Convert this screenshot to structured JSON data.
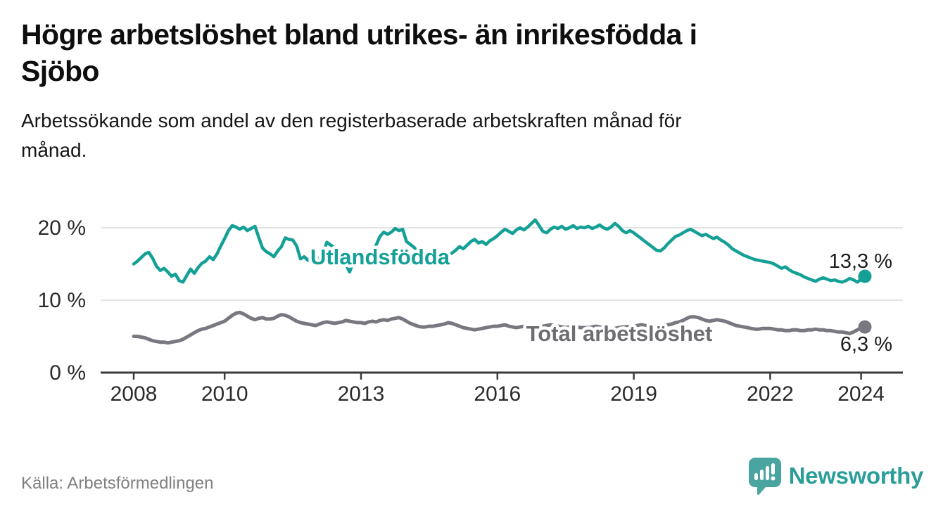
{
  "header": {
    "title_lines": [
      "Högre arbetslöshet bland utrikes- än inrikesfödda i",
      "Sjöbo"
    ],
    "subtitle_lines": [
      "Arbetssökande som andel av den registerbaserade arbetskraften månad för",
      "månad."
    ]
  },
  "footer": {
    "source": "Källa: Arbetsförmedlingen",
    "brand": "Newsworthy"
  },
  "colors": {
    "teal_line": "#14a096",
    "gray_line": "#787880",
    "gray_label": "#6d6d72",
    "grid": "#e3e3e3",
    "axis": "#3b3b3b",
    "tick_text": "#2b2b2b",
    "end_label_text": "#1c1c1c",
    "logo_teal": "#4aa5a1"
  },
  "chart_data": {
    "type": "line",
    "x_start_year": 2008,
    "x_step_months": 1,
    "xlim": [
      2007.25,
      2024.9
    ],
    "ylim": [
      0,
      21.5
    ],
    "grid": "horizontal-only",
    "x_ticks": [
      {
        "value": 2008,
        "label": "2008"
      },
      {
        "value": 2010,
        "label": "2010"
      },
      {
        "value": 2013,
        "label": "2013"
      },
      {
        "value": 2016,
        "label": "2016"
      },
      {
        "value": 2019,
        "label": "2019"
      },
      {
        "value": 2022,
        "label": "2022"
      },
      {
        "value": 2024,
        "label": "2024"
      }
    ],
    "y_ticks": [
      {
        "value": 0,
        "label": "0 %"
      },
      {
        "value": 10,
        "label": "10 %"
      },
      {
        "value": 20,
        "label": "20 %"
      }
    ],
    "series": [
      {
        "name": "Utlandsfödda",
        "color": "#14a096",
        "end_value": 13.3,
        "end_label": "13,3 %",
        "values": [
          15.0,
          15.4,
          15.9,
          16.4,
          16.6,
          15.8,
          14.7,
          14.1,
          14.4,
          13.9,
          13.3,
          13.6,
          12.7,
          12.5,
          13.4,
          14.3,
          13.7,
          14.5,
          15.1,
          15.4,
          16.0,
          15.6,
          16.4,
          17.5,
          18.5,
          19.6,
          20.3,
          20.1,
          19.8,
          20.1,
          19.6,
          19.9,
          20.2,
          18.7,
          17.2,
          16.7,
          16.4,
          16.0,
          16.8,
          17.4,
          18.6,
          18.4,
          18.3,
          17.5,
          15.7,
          16.0,
          15.5,
          16.1,
          15.7,
          15.9,
          16.6,
          18.0,
          17.6,
          17.3,
          16.6,
          15.6,
          14.9,
          13.9,
          15.3,
          15.7,
          15.4,
          15.6,
          16.2,
          16.8,
          17.6,
          18.8,
          19.4,
          19.1,
          19.4,
          19.9,
          19.6,
          19.8,
          18.1,
          17.7,
          17.3,
          16.6,
          16.0,
          15.6,
          15.4,
          15.4,
          15.5,
          15.4,
          15.6,
          16.2,
          16.5,
          16.9,
          17.4,
          17.1,
          17.6,
          18.1,
          18.4,
          17.9,
          18.1,
          17.7,
          18.2,
          18.5,
          18.9,
          19.4,
          19.8,
          19.5,
          19.2,
          19.7,
          20.0,
          19.7,
          20.1,
          20.6,
          21.1,
          20.3,
          19.5,
          19.3,
          19.8,
          20.1,
          19.9,
          20.2,
          19.8,
          20.0,
          20.3,
          19.9,
          20.1,
          20.0,
          20.2,
          19.9,
          20.1,
          20.4,
          20.0,
          19.8,
          20.1,
          20.6,
          20.2,
          19.6,
          19.3,
          19.6,
          19.3,
          18.9,
          18.5,
          18.1,
          17.7,
          17.3,
          16.9,
          16.8,
          17.2,
          17.8,
          18.3,
          18.8,
          19.0,
          19.3,
          19.6,
          19.8,
          19.5,
          19.2,
          18.9,
          19.1,
          18.8,
          18.5,
          18.7,
          18.3,
          18.0,
          17.6,
          17.1,
          16.8,
          16.5,
          16.2,
          16.0,
          15.8,
          15.6,
          15.5,
          15.4,
          15.3,
          15.2,
          15.0,
          14.7,
          14.4,
          14.6,
          14.2,
          13.9,
          13.7,
          13.5,
          13.2,
          13.0,
          12.8,
          12.6,
          12.9,
          13.1,
          12.9,
          12.7,
          12.8,
          12.6,
          12.5,
          12.7,
          13.0,
          12.8,
          12.5,
          12.9,
          13.3
        ]
      },
      {
        "name": "Total arbetslöshet",
        "color": "#787880",
        "end_value": 6.3,
        "end_label": "6,3 %",
        "values": [
          5.0,
          5.0,
          4.9,
          4.8,
          4.6,
          4.4,
          4.3,
          4.2,
          4.2,
          4.1,
          4.2,
          4.3,
          4.4,
          4.6,
          4.9,
          5.2,
          5.5,
          5.8,
          6.0,
          6.1,
          6.3,
          6.5,
          6.7,
          6.9,
          7.1,
          7.5,
          7.9,
          8.2,
          8.3,
          8.1,
          7.8,
          7.5,
          7.3,
          7.5,
          7.6,
          7.4,
          7.4,
          7.5,
          7.8,
          8.0,
          7.9,
          7.7,
          7.4,
          7.1,
          6.9,
          6.8,
          6.7,
          6.6,
          6.5,
          6.7,
          6.9,
          7.0,
          6.9,
          6.8,
          6.9,
          7.0,
          7.2,
          7.1,
          7.0,
          6.9,
          6.9,
          6.8,
          7.0,
          7.1,
          7.0,
          7.2,
          7.3,
          7.2,
          7.4,
          7.5,
          7.6,
          7.4,
          7.1,
          6.8,
          6.6,
          6.4,
          6.3,
          6.3,
          6.4,
          6.4,
          6.5,
          6.6,
          6.7,
          6.9,
          6.8,
          6.6,
          6.4,
          6.2,
          6.1,
          6.0,
          5.9,
          6.0,
          6.1,
          6.2,
          6.3,
          6.4,
          6.4,
          6.5,
          6.6,
          6.4,
          6.3,
          6.2,
          6.3,
          6.4,
          6.5,
          6.6,
          6.5,
          6.4,
          6.4,
          6.5,
          6.6,
          6.5,
          6.4,
          6.3,
          6.2,
          6.3,
          6.4,
          6.3,
          6.2,
          6.2,
          6.2,
          6.3,
          6.4,
          6.3,
          6.2,
          6.1,
          6.0,
          6.1,
          6.2,
          6.3,
          6.3,
          6.4,
          6.4,
          6.5,
          6.6,
          6.5,
          6.4,
          6.3,
          6.3,
          6.4,
          6.5,
          6.6,
          6.7,
          6.9,
          7.0,
          7.2,
          7.5,
          7.7,
          7.7,
          7.6,
          7.4,
          7.2,
          7.1,
          7.2,
          7.3,
          7.2,
          7.1,
          6.9,
          6.7,
          6.5,
          6.4,
          6.3,
          6.2,
          6.1,
          6.0,
          6.0,
          6.1,
          6.1,
          6.1,
          6.0,
          5.9,
          5.9,
          5.8,
          5.8,
          5.9,
          5.9,
          5.8,
          5.8,
          5.9,
          5.9,
          6.0,
          5.9,
          5.9,
          5.8,
          5.8,
          5.7,
          5.6,
          5.6,
          5.5,
          5.4,
          5.6,
          5.9,
          6.1,
          6.3
        ]
      }
    ]
  }
}
